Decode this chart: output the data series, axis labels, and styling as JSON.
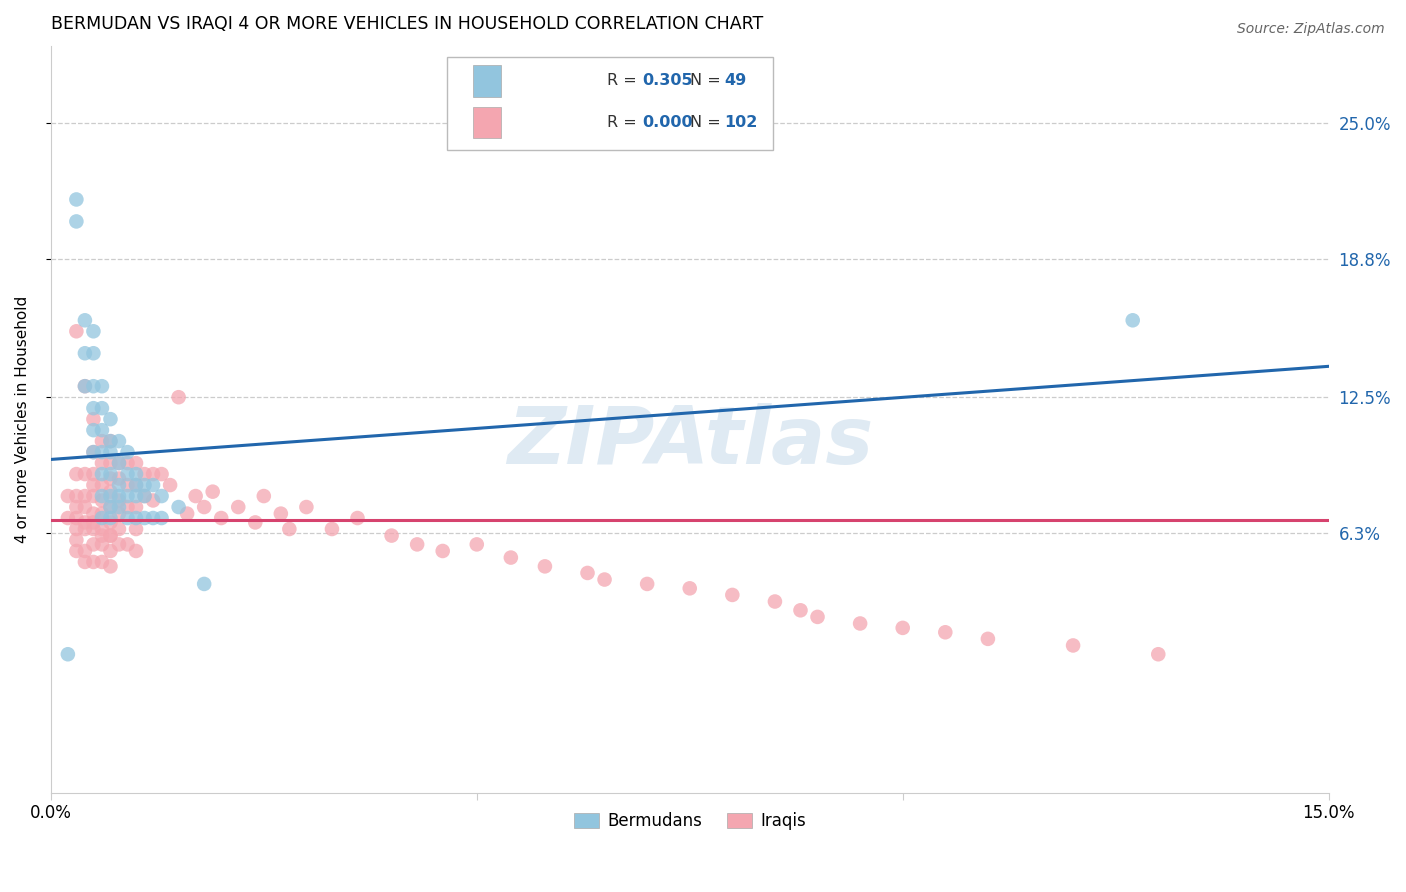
{
  "title": "BERMUDAN VS IRAQI 4 OR MORE VEHICLES IN HOUSEHOLD CORRELATION CHART",
  "source": "Source: ZipAtlas.com",
  "ylabel": "4 or more Vehicles in Household",
  "ytick_labels": [
    "25.0%",
    "18.8%",
    "12.5%",
    "6.3%"
  ],
  "ytick_values": [
    0.25,
    0.188,
    0.125,
    0.063
  ],
  "xlim": [
    0.0,
    0.15
  ],
  "ylim": [
    -0.055,
    0.285
  ],
  "bermudan_color": "#92c5de",
  "iraqi_color": "#f4a6b0",
  "bermudan_line_color": "#2166ac",
  "iraqi_line_color": "#d6436e",
  "watermark": "ZIPAtlas",
  "bermudan_R": "0.305",
  "bermudan_N": "49",
  "iraqi_R": "0.000",
  "iraqi_N": "102",
  "bermudan_x": [
    0.003,
    0.003,
    0.004,
    0.004,
    0.004,
    0.005,
    0.005,
    0.005,
    0.005,
    0.005,
    0.005,
    0.006,
    0.006,
    0.006,
    0.006,
    0.006,
    0.006,
    0.006,
    0.007,
    0.007,
    0.007,
    0.007,
    0.007,
    0.007,
    0.007,
    0.008,
    0.008,
    0.008,
    0.008,
    0.008,
    0.009,
    0.009,
    0.009,
    0.009,
    0.01,
    0.01,
    0.01,
    0.01,
    0.011,
    0.011,
    0.011,
    0.012,
    0.012,
    0.013,
    0.013,
    0.015,
    0.018,
    0.127,
    0.002
  ],
  "bermudan_y": [
    0.215,
    0.205,
    0.16,
    0.145,
    0.13,
    0.155,
    0.145,
    0.13,
    0.12,
    0.11,
    0.1,
    0.13,
    0.12,
    0.11,
    0.1,
    0.09,
    0.08,
    0.07,
    0.115,
    0.105,
    0.1,
    0.09,
    0.08,
    0.075,
    0.07,
    0.105,
    0.095,
    0.085,
    0.08,
    0.075,
    0.1,
    0.09,
    0.08,
    0.07,
    0.09,
    0.085,
    0.08,
    0.07,
    0.085,
    0.08,
    0.07,
    0.085,
    0.07,
    0.08,
    0.07,
    0.075,
    0.04,
    0.16,
    0.008
  ],
  "iraqi_x": [
    0.002,
    0.002,
    0.003,
    0.003,
    0.003,
    0.003,
    0.003,
    0.003,
    0.003,
    0.004,
    0.004,
    0.004,
    0.004,
    0.004,
    0.004,
    0.004,
    0.005,
    0.005,
    0.005,
    0.005,
    0.005,
    0.005,
    0.005,
    0.005,
    0.005,
    0.006,
    0.006,
    0.006,
    0.006,
    0.006,
    0.006,
    0.006,
    0.006,
    0.007,
    0.007,
    0.007,
    0.007,
    0.007,
    0.007,
    0.007,
    0.007,
    0.007,
    0.008,
    0.008,
    0.008,
    0.008,
    0.008,
    0.009,
    0.009,
    0.009,
    0.01,
    0.01,
    0.01,
    0.01,
    0.011,
    0.011,
    0.012,
    0.012,
    0.013,
    0.014,
    0.015,
    0.016,
    0.017,
    0.018,
    0.019,
    0.02,
    0.022,
    0.024,
    0.025,
    0.027,
    0.028,
    0.03,
    0.033,
    0.036,
    0.04,
    0.043,
    0.046,
    0.05,
    0.054,
    0.058,
    0.063,
    0.065,
    0.07,
    0.075,
    0.08,
    0.085,
    0.088,
    0.09,
    0.095,
    0.1,
    0.105,
    0.11,
    0.12,
    0.13,
    0.003,
    0.004,
    0.005,
    0.006,
    0.007,
    0.008,
    0.009,
    0.01
  ],
  "iraqi_y": [
    0.08,
    0.07,
    0.155,
    0.09,
    0.08,
    0.075,
    0.065,
    0.06,
    0.055,
    0.13,
    0.09,
    0.08,
    0.075,
    0.065,
    0.055,
    0.05,
    0.115,
    0.1,
    0.09,
    0.085,
    0.08,
    0.072,
    0.065,
    0.058,
    0.05,
    0.105,
    0.095,
    0.085,
    0.078,
    0.072,
    0.065,
    0.058,
    0.05,
    0.105,
    0.095,
    0.088,
    0.082,
    0.075,
    0.068,
    0.062,
    0.055,
    0.048,
    0.095,
    0.088,
    0.078,
    0.072,
    0.065,
    0.095,
    0.085,
    0.075,
    0.095,
    0.085,
    0.075,
    0.065,
    0.09,
    0.08,
    0.09,
    0.078,
    0.09,
    0.085,
    0.125,
    0.072,
    0.08,
    0.075,
    0.082,
    0.07,
    0.075,
    0.068,
    0.08,
    0.072,
    0.065,
    0.075,
    0.065,
    0.07,
    0.062,
    0.058,
    0.055,
    0.058,
    0.052,
    0.048,
    0.045,
    0.042,
    0.04,
    0.038,
    0.035,
    0.032,
    0.028,
    0.025,
    0.022,
    0.02,
    0.018,
    0.015,
    0.012,
    0.008,
    0.07,
    0.068,
    0.068,
    0.062,
    0.062,
    0.058,
    0.058,
    0.055
  ]
}
